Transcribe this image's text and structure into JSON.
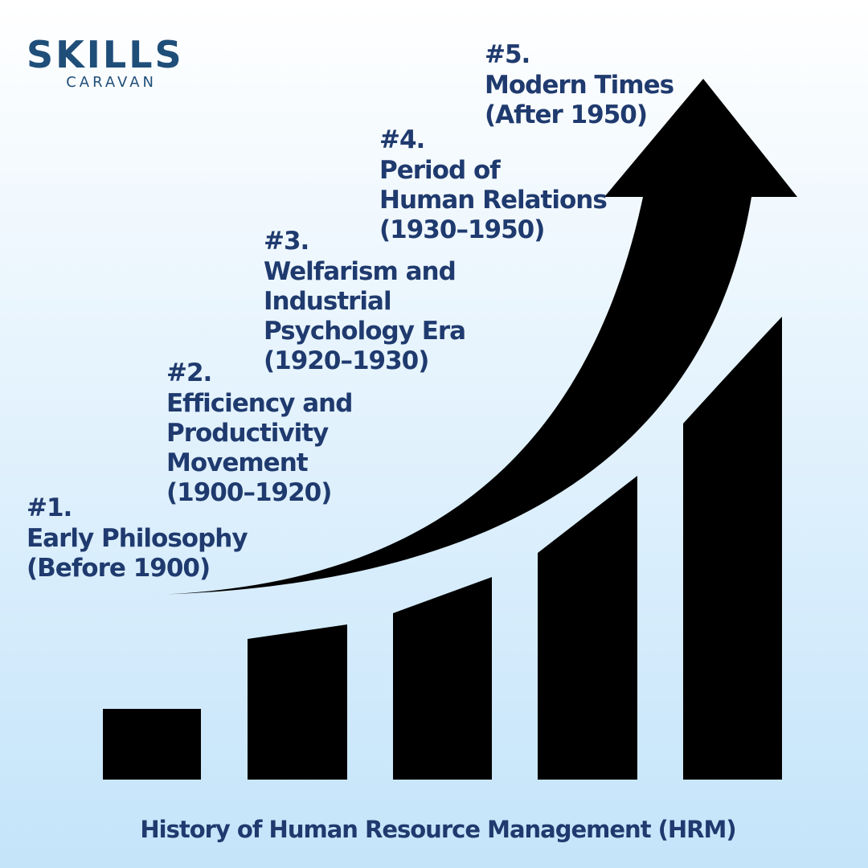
{
  "logo": {
    "name": "SKILLS",
    "sub": "CARAVAN"
  },
  "stages": [
    {
      "number": "#1.",
      "lines": [
        "Early Philosophy",
        "(Before 1900)"
      ]
    },
    {
      "number": "#2.",
      "lines": [
        "Efficiency and",
        "Productivity",
        "Movement",
        "(1900–1920)"
      ]
    },
    {
      "number": "#3.",
      "lines": [
        "Welfarism and",
        "Industrial",
        "Psychology Era",
        "(1920–1930)"
      ]
    },
    {
      "number": "#4.",
      "lines": [
        "Period of",
        "Human Relations",
        "(1930–1950)"
      ]
    },
    {
      "number": "#5.",
      "lines": [
        "Modern Times",
        "(After 1950)"
      ]
    }
  ],
  "footer": "History of Human Resource Management (HRM)"
}
